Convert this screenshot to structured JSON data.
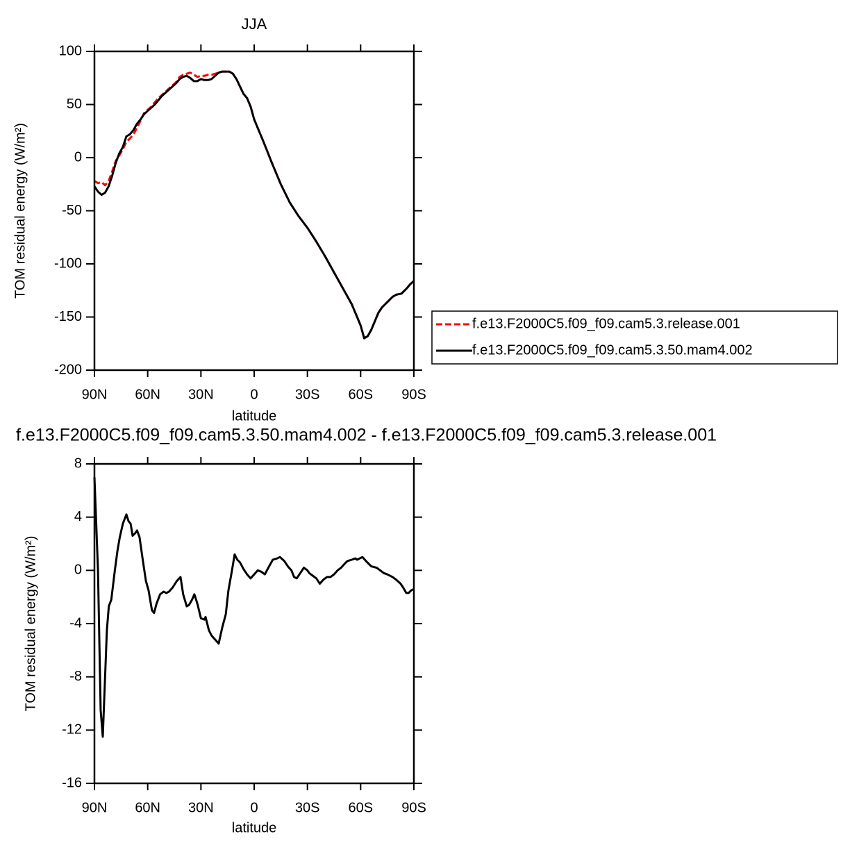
{
  "chart_data": [
    {
      "type": "line",
      "title": "JJA",
      "xlabel": "latitude",
      "ylabel": "TOM residual energy (W/m²)",
      "x": [
        90,
        88,
        86,
        84,
        82,
        80,
        78,
        76,
        74,
        72,
        70,
        68,
        66,
        64,
        62,
        60,
        58,
        56,
        54,
        52,
        50,
        48,
        46,
        44,
        42,
        40,
        38,
        36,
        34,
        32,
        30,
        28,
        26,
        24,
        22,
        20,
        18,
        16,
        14,
        12,
        10,
        8,
        6,
        4,
        2,
        0,
        -5,
        -10,
        -15,
        -20,
        -25,
        -30,
        -35,
        -40,
        -45,
        -50,
        -55,
        -58,
        -60,
        -62,
        -64,
        -66,
        -68,
        -70,
        -72,
        -75,
        -78,
        -80,
        -83,
        -86,
        -88,
        -90
      ],
      "series": [
        {
          "name": "f.e13.F2000C5.f09_f09.cam5.3.release.001",
          "color": "#ff0000",
          "dashed": true,
          "values": [
            -22,
            -24,
            -23,
            -26,
            -22,
            -13,
            -3,
            2,
            8,
            15,
            18,
            22,
            28,
            35,
            42,
            45,
            48,
            52,
            56,
            59,
            62,
            65,
            68,
            71,
            76,
            78,
            79,
            80,
            78,
            76,
            77,
            77,
            78,
            78,
            79,
            80,
            81,
            81,
            81,
            79,
            74,
            67,
            60,
            56,
            48,
            36,
            16,
            -5,
            -25,
            -42,
            -55,
            -66,
            -79,
            -93,
            -108,
            -123,
            -138,
            -150,
            -158,
            -170,
            -168,
            -162,
            -154,
            -146,
            -141,
            -136,
            -131,
            -129,
            -128,
            -123,
            -119,
            -116
          ]
        },
        {
          "name": "f.e13.F2000C5.f09_f09.cam5.3.50.mam4.002",
          "color": "#000000",
          "dashed": false,
          "values": [
            -27,
            -32,
            -35,
            -33,
            -27,
            -17,
            -5,
            4,
            10,
            20,
            22,
            26,
            32,
            36,
            41,
            44,
            47,
            50,
            54,
            58,
            61,
            64,
            67,
            70,
            74,
            76,
            77,
            75,
            72,
            72,
            74,
            73,
            73,
            74,
            77,
            80,
            81,
            81,
            81,
            79,
            74,
            67,
            60,
            56,
            48,
            36,
            16,
            -5,
            -25,
            -42,
            -55,
            -66,
            -79,
            -93,
            -108,
            -123,
            -138,
            -150,
            -158,
            -170,
            -168,
            -162,
            -154,
            -146,
            -141,
            -136,
            -131,
            -129,
            -128,
            -123,
            -119,
            -116
          ]
        }
      ],
      "xlim": [
        90,
        -90
      ],
      "xticks": [
        {
          "value": 90,
          "label": "90N"
        },
        {
          "value": 60,
          "label": "60N"
        },
        {
          "value": 30,
          "label": "30N"
        },
        0,
        {
          "value": -30,
          "label": "30S"
        },
        {
          "value": -60,
          "label": "60S"
        },
        {
          "value": -90,
          "label": "90S"
        }
      ],
      "ylim": [
        -200,
        100
      ],
      "yticks": [
        100,
        50,
        0,
        -50,
        -100,
        -150,
        -200
      ],
      "legend": "right"
    },
    {
      "type": "line",
      "title": "f.e13.F2000C5.f09_f09.cam5.3.50.mam4.002 - f.e13.F2000C5.f09_f09.cam5.3.release.001",
      "xlabel": "latitude",
      "ylabel": "TOM residual energy (W/m²)",
      "x": [
        90,
        88,
        86.5,
        85.3,
        84,
        83,
        81.9,
        80.5,
        78.5,
        77,
        75.7,
        74,
        72,
        70.8,
        69.6,
        68.5,
        67,
        66,
        64.6,
        63,
        61,
        59.5,
        57.6,
        56.4,
        55,
        53,
        51,
        49.5,
        48,
        46,
        43.6,
        41.5,
        40,
        38,
        36.7,
        35,
        33.7,
        32,
        30,
        28,
        27.4,
        25.5,
        24,
        22,
        20,
        18,
        16,
        14.5,
        12.5,
        11,
        9.5,
        8,
        6,
        4,
        2,
        0,
        -2,
        -4,
        -6,
        -8,
        -10.5,
        -13,
        -14.5,
        -17,
        -19,
        -21,
        -22.5,
        -24,
        -26,
        -28,
        -30,
        -31,
        -33,
        -35,
        -37,
        -39,
        -41,
        -43,
        -45,
        -47,
        -49,
        -51,
        -52.5,
        -55,
        -57,
        -58,
        -61,
        -63,
        -66,
        -69,
        -71,
        -73,
        -75,
        -78,
        -80,
        -82.5,
        -84,
        -85.7,
        -87,
        -88.5,
        -90
      ],
      "series": [
        {
          "name": null,
          "color": "#000000",
          "dashed": false,
          "values": [
            7,
            0,
            -10.5,
            -12.5,
            -8,
            -4.5,
            -2.7,
            -2.2,
            0,
            1.5,
            2.5,
            3.5,
            4.2,
            3.7,
            3.5,
            2.6,
            2.8,
            3.0,
            2.5,
            1,
            -0.8,
            -1.5,
            -3.0,
            -3.2,
            -2.5,
            -1.8,
            -1.6,
            -1.7,
            -1.6,
            -1.3,
            -0.8,
            -0.5,
            -1.8,
            -2.7,
            -2.6,
            -2.2,
            -1.8,
            -2.5,
            -3.6,
            -3.7,
            -3.5,
            -4.5,
            -4.9,
            -5.2,
            -5.5,
            -4.3,
            -3.3,
            -1.5,
            0,
            1.2,
            0.8,
            0.6,
            0.1,
            -0.3,
            -0.6,
            -0.3,
            0,
            -0.1,
            -0.3,
            0.2,
            0.8,
            0.9,
            1.0,
            0.7,
            0.3,
            0,
            -0.5,
            -0.6,
            -0.2,
            0.2,
            0,
            -0.2,
            -0.4,
            -0.6,
            -1.0,
            -0.7,
            -0.5,
            -0.5,
            -0.3,
            0,
            0.2,
            0.5,
            0.7,
            0.8,
            0.9,
            0.8,
            1.0,
            0.7,
            0.3,
            0.2,
            0,
            -0.2,
            -0.3,
            -0.5,
            -0.7,
            -1.0,
            -1.3,
            -1.7,
            -1.7,
            -1.5,
            -1.4
          ]
        }
      ],
      "xlim": [
        90,
        -90
      ],
      "xticks": [
        {
          "value": 90,
          "label": "90N"
        },
        {
          "value": 60,
          "label": "60N"
        },
        {
          "value": 30,
          "label": "30N"
        },
        0,
        {
          "value": -30,
          "label": "30S"
        },
        {
          "value": -60,
          "label": "60S"
        },
        {
          "value": -90,
          "label": "90S"
        }
      ],
      "ylim": [
        -16,
        8
      ],
      "yticks": [
        8,
        4,
        0,
        -4,
        -8,
        -12,
        -16
      ]
    }
  ]
}
